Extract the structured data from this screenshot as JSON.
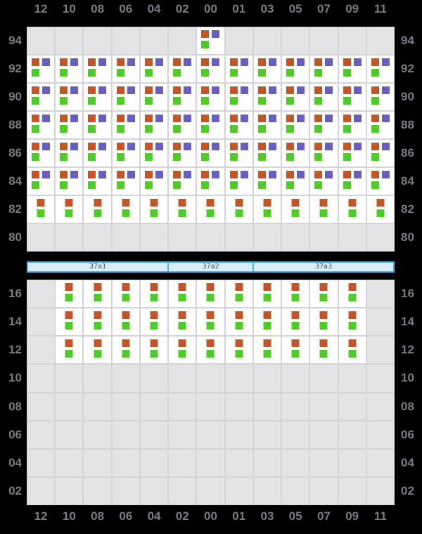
{
  "colors": {
    "background": "#000000",
    "grid_line": "#d4d4d8",
    "cell_empty": "#e4e4e7",
    "cell_occupied": "#ffffff",
    "label": "#7b7b84",
    "orange": "#c65429",
    "purple": "#675ec0",
    "green": "#4fcb2a",
    "hatch_fill": "#dcedfa",
    "hatch_border": "#3fb5ec",
    "hatch_text": "#46505b"
  },
  "columns": [
    "12",
    "10",
    "08",
    "06",
    "04",
    "02",
    "00",
    "01",
    "03",
    "05",
    "07",
    "09",
    "11"
  ],
  "chart_data": [
    {
      "type": "heatmap",
      "title": "",
      "position": "top",
      "x_categories": [
        "12",
        "10",
        "08",
        "06",
        "04",
        "02",
        "00",
        "01",
        "03",
        "05",
        "07",
        "09",
        "11"
      ],
      "y_categories": [
        "94",
        "92",
        "90",
        "88",
        "86",
        "84",
        "82",
        "80"
      ],
      "cell_types": {
        "OPG": [
          "orange",
          "purple",
          "green"
        ],
        "OG": [
          "orange",
          "green"
        ],
        "": []
      },
      "cells": [
        [
          "",
          "",
          "",
          "",
          "",
          "",
          "OPG",
          "",
          "",
          "",
          "",
          "",
          ""
        ],
        [
          "OPG",
          "OPG",
          "OPG",
          "OPG",
          "OPG",
          "OPG",
          "OPG",
          "OPG",
          "OPG",
          "OPG",
          "OPG",
          "OPG",
          "OPG"
        ],
        [
          "OPG",
          "OPG",
          "OPG",
          "OPG",
          "OPG",
          "OPG",
          "OPG",
          "OPG",
          "OPG",
          "OPG",
          "OPG",
          "OPG",
          "OPG"
        ],
        [
          "OPG",
          "OPG",
          "OPG",
          "OPG",
          "OPG",
          "OPG",
          "OPG",
          "OPG",
          "OPG",
          "OPG",
          "OPG",
          "OPG",
          "OPG"
        ],
        [
          "OPG",
          "OPG",
          "OPG",
          "OPG",
          "OPG",
          "OPG",
          "OPG",
          "OPG",
          "OPG",
          "OPG",
          "OPG",
          "OPG",
          "OPG"
        ],
        [
          "OPG",
          "OPG",
          "OPG",
          "OPG",
          "OPG",
          "OPG",
          "OPG",
          "OPG",
          "OPG",
          "OPG",
          "OPG",
          "OPG",
          "OPG"
        ],
        [
          "OG",
          "OG",
          "OG",
          "OG",
          "OG",
          "OG",
          "OG",
          "OG",
          "OG",
          "OG",
          "OG",
          "OG",
          "OG"
        ],
        [
          "",
          "",
          "",
          "",
          "",
          "",
          "",
          "",
          "",
          "",
          "",
          "",
          ""
        ]
      ]
    },
    {
      "type": "heatmap",
      "title": "",
      "position": "bottom",
      "x_categories": [
        "12",
        "10",
        "08",
        "06",
        "04",
        "02",
        "00",
        "01",
        "03",
        "05",
        "07",
        "09",
        "11"
      ],
      "y_categories": [
        "16",
        "14",
        "12",
        "10",
        "08",
        "06",
        "04",
        "02"
      ],
      "cell_types": {
        "OPG": [
          "orange",
          "purple",
          "green"
        ],
        "OG": [
          "orange",
          "green"
        ],
        "": []
      },
      "cells": [
        [
          "",
          "OG",
          "OG",
          "OG",
          "OG",
          "OG",
          "OG",
          "OG",
          "OG",
          "OG",
          "OG",
          "OG",
          ""
        ],
        [
          "",
          "OG",
          "OG",
          "OG",
          "OG",
          "OG",
          "OG",
          "OG",
          "OG",
          "OG",
          "OG",
          "OG",
          ""
        ],
        [
          "",
          "OG",
          "OG",
          "OG",
          "OG",
          "OG",
          "OG",
          "OG",
          "OG",
          "OG",
          "OG",
          "OG",
          ""
        ],
        [
          "",
          "",
          "",
          "",
          "",
          "",
          "",
          "",
          "",
          "",
          "",
          "",
          ""
        ],
        [
          "",
          "",
          "",
          "",
          "",
          "",
          "",
          "",
          "",
          "",
          "",
          "",
          ""
        ],
        [
          "",
          "",
          "",
          "",
          "",
          "",
          "",
          "",
          "",
          "",
          "",
          "",
          ""
        ],
        [
          "",
          "",
          "",
          "",
          "",
          "",
          "",
          "",
          "",
          "",
          "",
          "",
          ""
        ],
        [
          "",
          "",
          "",
          "",
          "",
          "",
          "",
          "",
          "",
          "",
          "",
          "",
          ""
        ]
      ]
    }
  ],
  "hatch_bar": {
    "segments": [
      {
        "label": "37a1",
        "span": 5
      },
      {
        "label": "37a2",
        "span": 3
      },
      {
        "label": "37a3",
        "span": 5
      }
    ]
  }
}
